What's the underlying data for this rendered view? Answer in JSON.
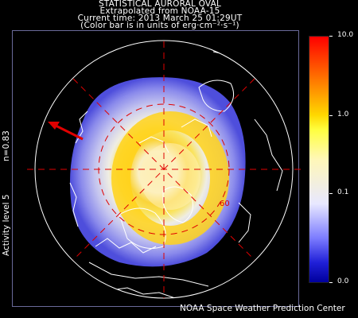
{
  "header": {
    "line1": "STATISTICAL AURORAL OVAL",
    "line2": "Extrapolated from NOAA-15",
    "line3": "Current time: 2013 March 25 01:29UT",
    "line4": "(Color bar is in units of erg·cm⁻²·s⁻¹)"
  },
  "side_labels": {
    "activity": "Activity level 5",
    "n": "n=0.83"
  },
  "map": {
    "latitude_label": "60",
    "grid_color": "#e00000",
    "arrow_color": "#e00000"
  },
  "colorbar": {
    "ticks": [
      "10.0",
      "1.0",
      "0.1",
      "0.0"
    ],
    "colors": [
      "#ff0000",
      "#ff7a00",
      "#ffd800",
      "#fff7b8",
      "#e8e8ff",
      "#7c7cff",
      "#00009c"
    ]
  },
  "footer": {
    "credit": "NOAA Space Weather Prediction Center"
  }
}
